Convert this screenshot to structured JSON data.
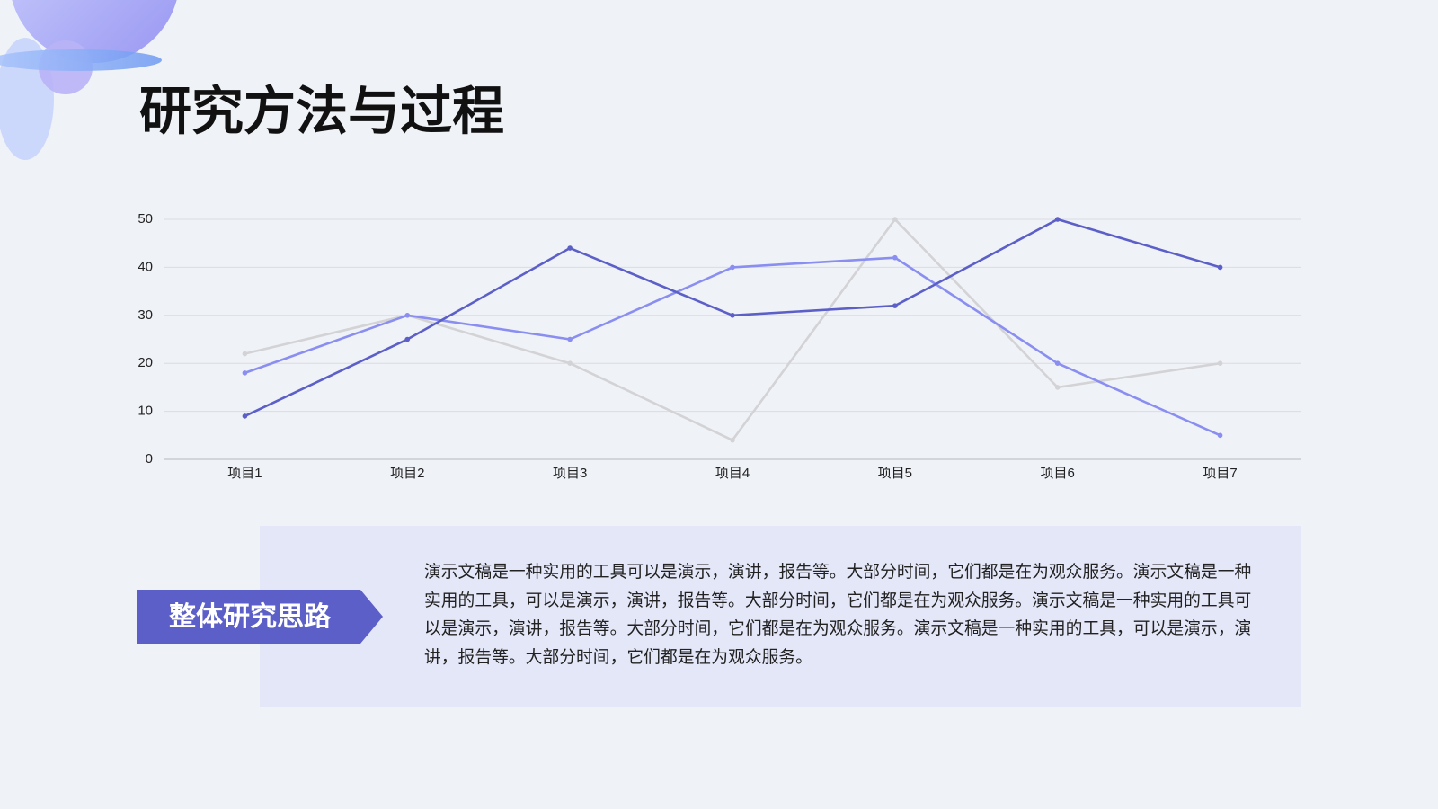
{
  "title": "研究方法与过程",
  "chart_data": {
    "type": "line",
    "categories": [
      "项目1",
      "项目2",
      "项目3",
      "项目4",
      "项目5",
      "项目6",
      "项目7"
    ],
    "series": [
      {
        "color": "#5b5fc7",
        "values": [
          9,
          25,
          44,
          30,
          32,
          50,
          40
        ]
      },
      {
        "color": "#8a8ef0",
        "values": [
          18,
          30,
          25,
          40,
          42,
          20,
          5
        ]
      },
      {
        "color": "#d3d3d6",
        "values": [
          22,
          30,
          20,
          4,
          50,
          15,
          20
        ]
      }
    ],
    "ylim": [
      0,
      50
    ],
    "yticks": [
      0,
      10,
      20,
      30,
      40,
      50
    ],
    "grid": true
  },
  "section": {
    "label": "整体研究思路",
    "text": "演示文稿是一种实用的工具可以是演示，演讲，报告等。大部分时间，它们都是在为观众服务。演示文稿是一种实用的工具，可以是演示，演讲，报告等。大部分时间，它们都是在为观众服务。演示文稿是一种实用的工具可以是演示，演讲，报告等。大部分时间，它们都是在为观众服务。演示文稿是一种实用的工具，可以是演示，演讲，报告等。大部分时间，它们都是在为观众服务。"
  }
}
